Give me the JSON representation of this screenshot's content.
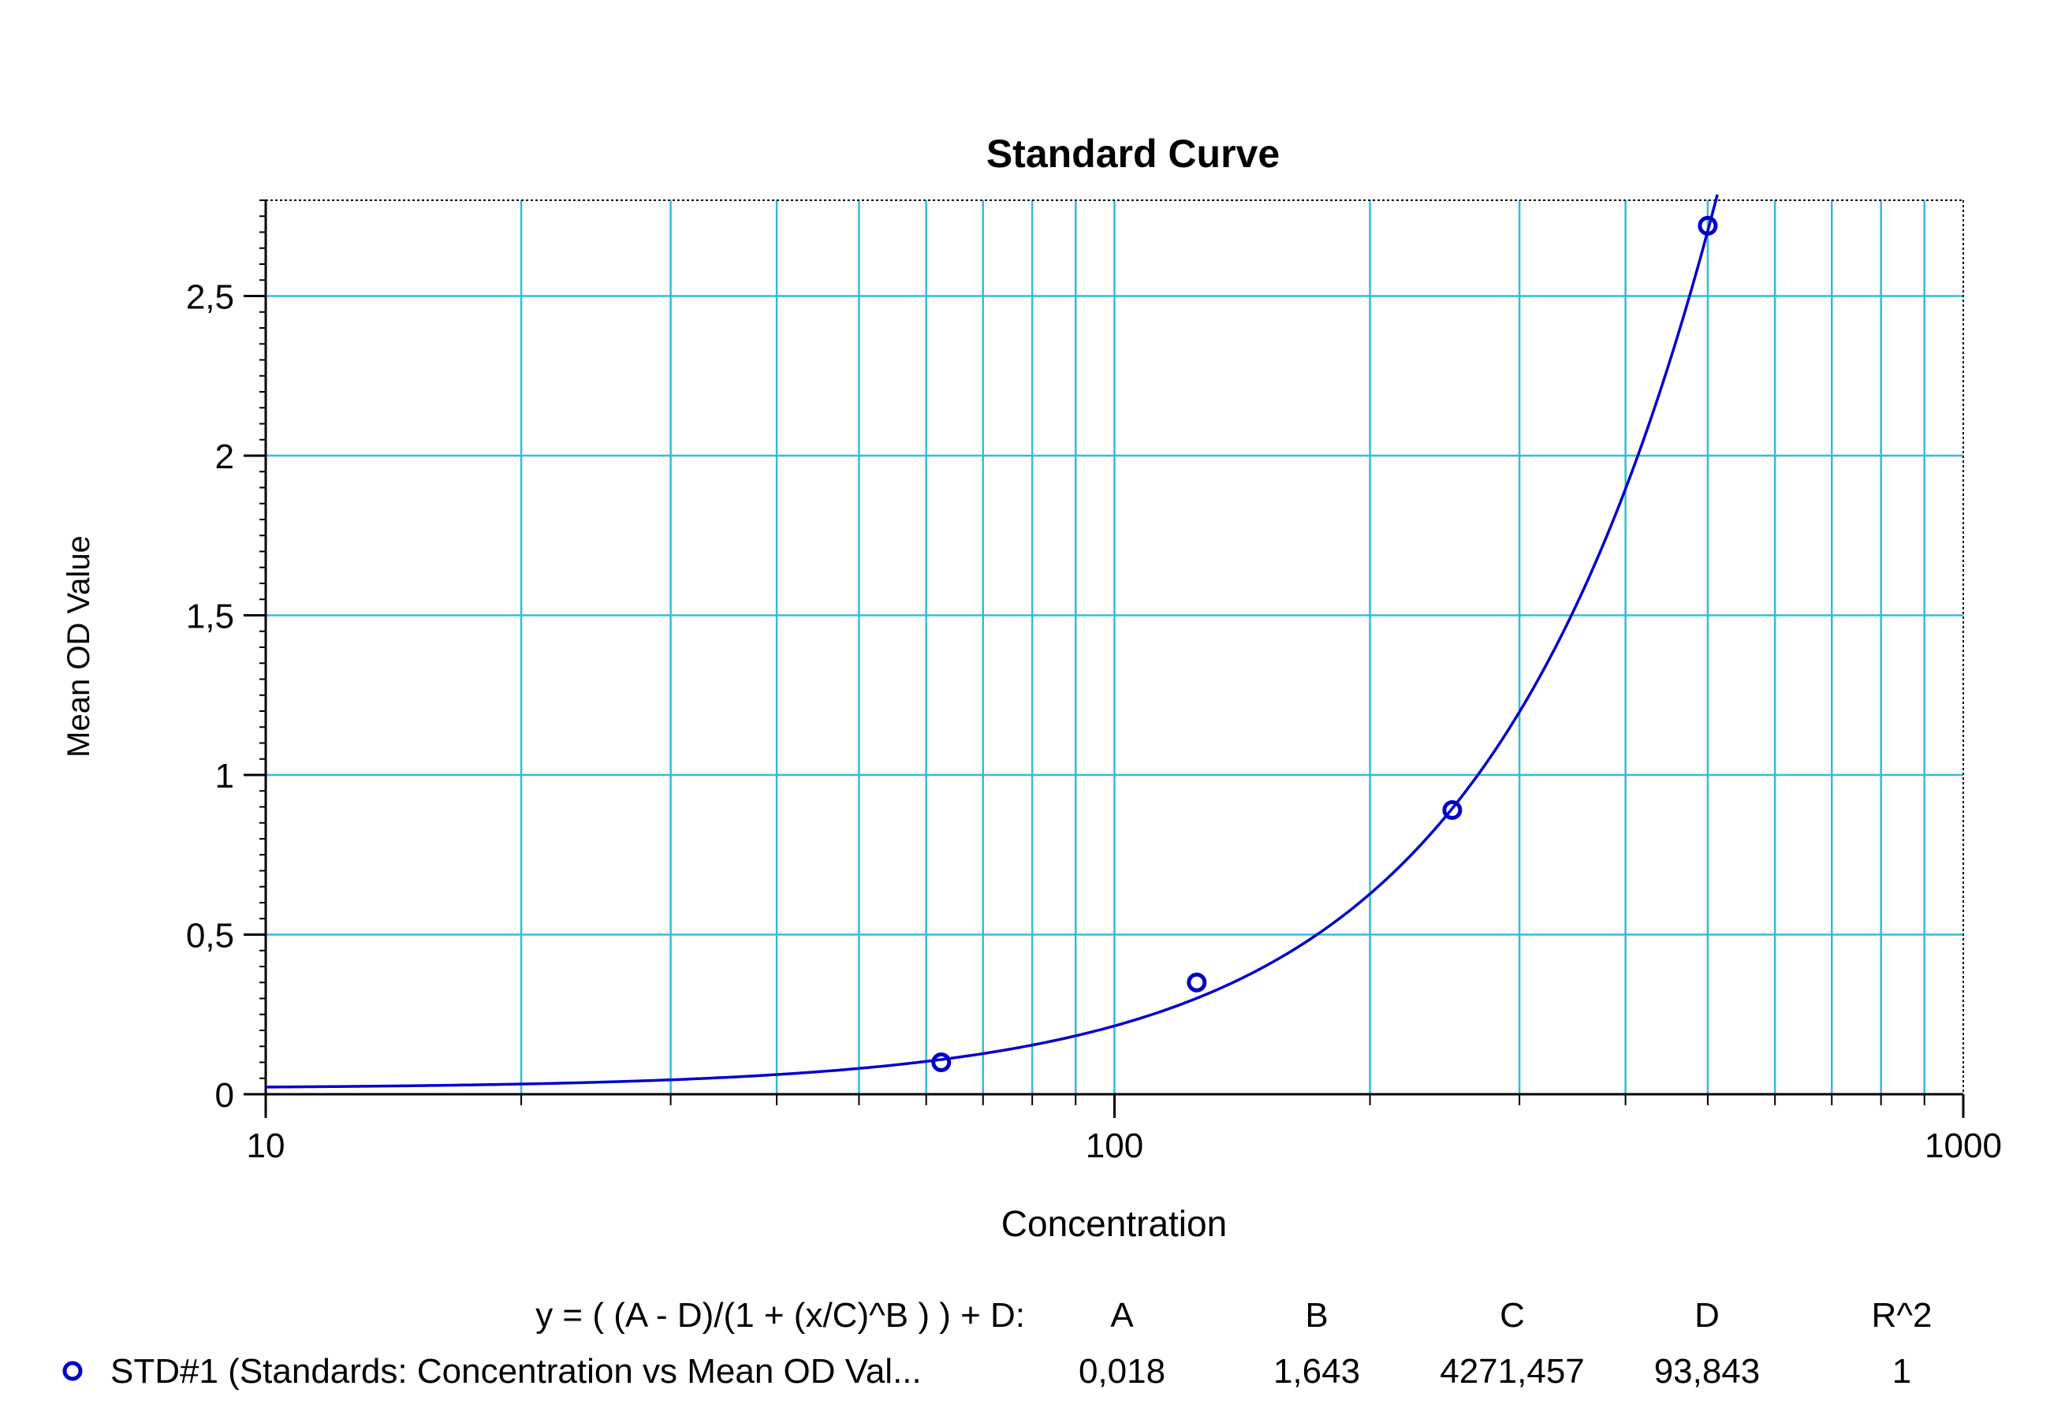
{
  "chart_data": {
    "type": "scatter",
    "title": "Standard Curve",
    "xlabel": "Concentration",
    "ylabel": "Mean OD Value",
    "x_scale": "log",
    "xlim": [
      10,
      1000
    ],
    "ylim": [
      0,
      2.8
    ],
    "x_ticks": [
      {
        "value": 10,
        "label": "10"
      },
      {
        "value": 100,
        "label": "100"
      },
      {
        "value": 1000,
        "label": "1000"
      }
    ],
    "y_ticks": [
      {
        "value": 0,
        "label": "0"
      },
      {
        "value": 0.5,
        "label": "0,5"
      },
      {
        "value": 1,
        "label": "1"
      },
      {
        "value": 1.5,
        "label": "1,5"
      },
      {
        "value": 2,
        "label": "2"
      },
      {
        "value": 2.5,
        "label": "2,5"
      }
    ],
    "grid": true,
    "series": [
      {
        "name": "STD#1 (Standards: Concentration vs Mean OD Val...",
        "points": [
          {
            "x": 62.5,
            "y": 0.1
          },
          {
            "x": 125,
            "y": 0.35
          },
          {
            "x": 250,
            "y": 0.89
          },
          {
            "x": 500,
            "y": 2.72
          }
        ],
        "color": "#0000cc",
        "marker": "circle"
      }
    ],
    "fit": {
      "equation": "y = ( (A - D)/(1 + (x/C)^B ) ) + D:",
      "A": 0.018,
      "B": 1.643,
      "C": 4271.457,
      "D": 93.843,
      "x_range": [
        10,
        520
      ],
      "color": "#0000cc"
    },
    "legend_table": {
      "headers": [
        "A",
        "B",
        "C",
        "D",
        "R^2"
      ],
      "rows": [
        {
          "values": [
            "0,018",
            "1,643",
            "4271,457",
            "93,843",
            "1"
          ]
        }
      ]
    },
    "colors": {
      "grid": "#33bbdd",
      "axis": "#000000",
      "series": "#0000cc"
    }
  }
}
